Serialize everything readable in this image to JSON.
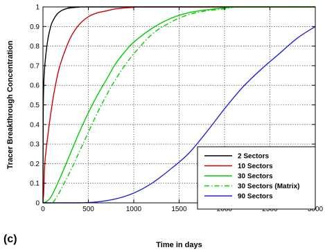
{
  "chart_data": {
    "type": "line",
    "panel_label": "(c)",
    "xlabel": "Time in days",
    "ylabel": "Tracer Breakthrough Concentration",
    "xlim": [
      0,
      3000
    ],
    "ylim": [
      0,
      1
    ],
    "x_ticks": [
      0,
      500,
      1000,
      1500,
      2000,
      2500,
      3000
    ],
    "y_ticks": [
      0,
      0.1,
      0.2,
      0.3,
      0.4,
      0.5,
      0.6,
      0.7,
      0.8,
      0.9,
      1
    ],
    "grid": true,
    "legend_position": "bottom-right",
    "series": [
      {
        "name": "2 Sectors",
        "color": "#000000",
        "dash": "solid",
        "x": [
          0,
          3,
          10,
          20,
          40,
          60,
          80,
          100,
          150,
          200,
          250,
          300,
          400,
          500,
          3000
        ],
        "y": [
          0,
          0.45,
          0.62,
          0.7,
          0.79,
          0.85,
          0.89,
          0.92,
          0.96,
          0.98,
          0.99,
          0.995,
          0.999,
          1,
          1
        ]
      },
      {
        "name": "10 Sectors",
        "color": "#cc0000",
        "dash": "solid",
        "x": [
          0,
          10,
          20,
          50,
          100,
          150,
          200,
          300,
          400,
          500,
          600,
          700,
          800,
          1000,
          1200,
          3000
        ],
        "y": [
          0,
          0.07,
          0.2,
          0.33,
          0.5,
          0.63,
          0.72,
          0.84,
          0.91,
          0.95,
          0.97,
          0.98,
          0.99,
          0.998,
          1,
          1
        ]
      },
      {
        "name": "30 Sectors",
        "color": "#00cc00",
        "dash": "solid",
        "x": [
          0,
          50,
          100,
          200,
          300,
          400,
          500,
          600,
          700,
          800,
          900,
          1000,
          1200,
          1400,
          1600,
          1800,
          2000,
          2200,
          3000
        ],
        "y": [
          0,
          0.01,
          0.04,
          0.14,
          0.25,
          0.36,
          0.46,
          0.55,
          0.63,
          0.71,
          0.77,
          0.82,
          0.89,
          0.94,
          0.97,
          0.985,
          0.995,
          1,
          1
        ]
      },
      {
        "name": "30 Sectors (Matrix)",
        "color": "#00cc00",
        "dash": "dashdot",
        "x": [
          0,
          100,
          150,
          200,
          300,
          400,
          500,
          600,
          700,
          800,
          900,
          1000,
          1200,
          1400,
          1600,
          1800,
          2000,
          2200,
          3000
        ],
        "y": [
          0,
          0.0,
          0.03,
          0.07,
          0.16,
          0.26,
          0.36,
          0.46,
          0.55,
          0.63,
          0.7,
          0.76,
          0.86,
          0.92,
          0.96,
          0.98,
          0.99,
          1,
          1
        ]
      },
      {
        "name": "90 Sectors",
        "color": "#2222dd",
        "dash": "solid",
        "x": [
          0,
          400,
          600,
          800,
          1000,
          1200,
          1400,
          1600,
          1800,
          2000,
          2200,
          2400,
          2600,
          2800,
          3000
        ],
        "y": [
          0,
          0.0,
          0.005,
          0.02,
          0.05,
          0.1,
          0.17,
          0.25,
          0.36,
          0.48,
          0.59,
          0.68,
          0.76,
          0.84,
          0.9
        ]
      }
    ]
  }
}
